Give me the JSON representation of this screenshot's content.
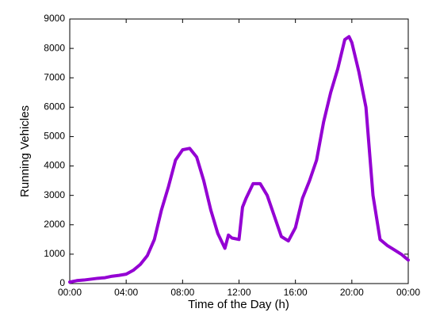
{
  "chart_data": {
    "type": "line",
    "xlabel": "Time of the Day (h)",
    "ylabel": "Running Vehicles",
    "x": [
      0,
      0.5,
      1,
      1.5,
      2,
      2.5,
      3,
      3.5,
      4,
      4.5,
      5,
      5.5,
      6,
      6.5,
      7,
      7.5,
      8,
      8.5,
      9,
      9.5,
      10,
      10.5,
      11,
      11.25,
      11.5,
      12,
      12.25,
      12.5,
      13,
      13.5,
      14,
      14.5,
      15,
      15.5,
      16,
      16.5,
      17,
      17.5,
      18,
      18.5,
      19,
      19.5,
      19.8,
      20,
      20.5,
      21,
      21.5,
      22,
      22.5,
      23,
      23.5,
      24
    ],
    "series": [
      {
        "name": "Running Vehicles",
        "color": "#9400d3",
        "values": [
          50,
          100,
          120,
          150,
          180,
          200,
          250,
          280,
          320,
          450,
          650,
          950,
          1500,
          2500,
          3300,
          4200,
          4550,
          4600,
          4300,
          3500,
          2500,
          1700,
          1200,
          1650,
          1550,
          1500,
          2600,
          2900,
          3400,
          3400,
          3000,
          2300,
          1600,
          1450,
          1900,
          2900,
          3500,
          4200,
          5500,
          6500,
          7300,
          8300,
          8400,
          8200,
          7200,
          6000,
          3000,
          1500,
          1300,
          1150,
          1000,
          800
        ]
      }
    ],
    "xlim": [
      0,
      24
    ],
    "xticks": [
      {
        "value": 0,
        "label": "00:00"
      },
      {
        "value": 4,
        "label": "04:00"
      },
      {
        "value": 8,
        "label": "08:00"
      },
      {
        "value": 12,
        "label": "12:00"
      },
      {
        "value": 16,
        "label": "16:00"
      },
      {
        "value": 20,
        "label": "20:00"
      },
      {
        "value": 24,
        "label": "00:00"
      }
    ],
    "ylim": [
      0,
      9000
    ],
    "yticks": [
      0,
      1000,
      2000,
      3000,
      4000,
      5000,
      6000,
      7000,
      8000,
      9000
    ],
    "grid": false
  }
}
